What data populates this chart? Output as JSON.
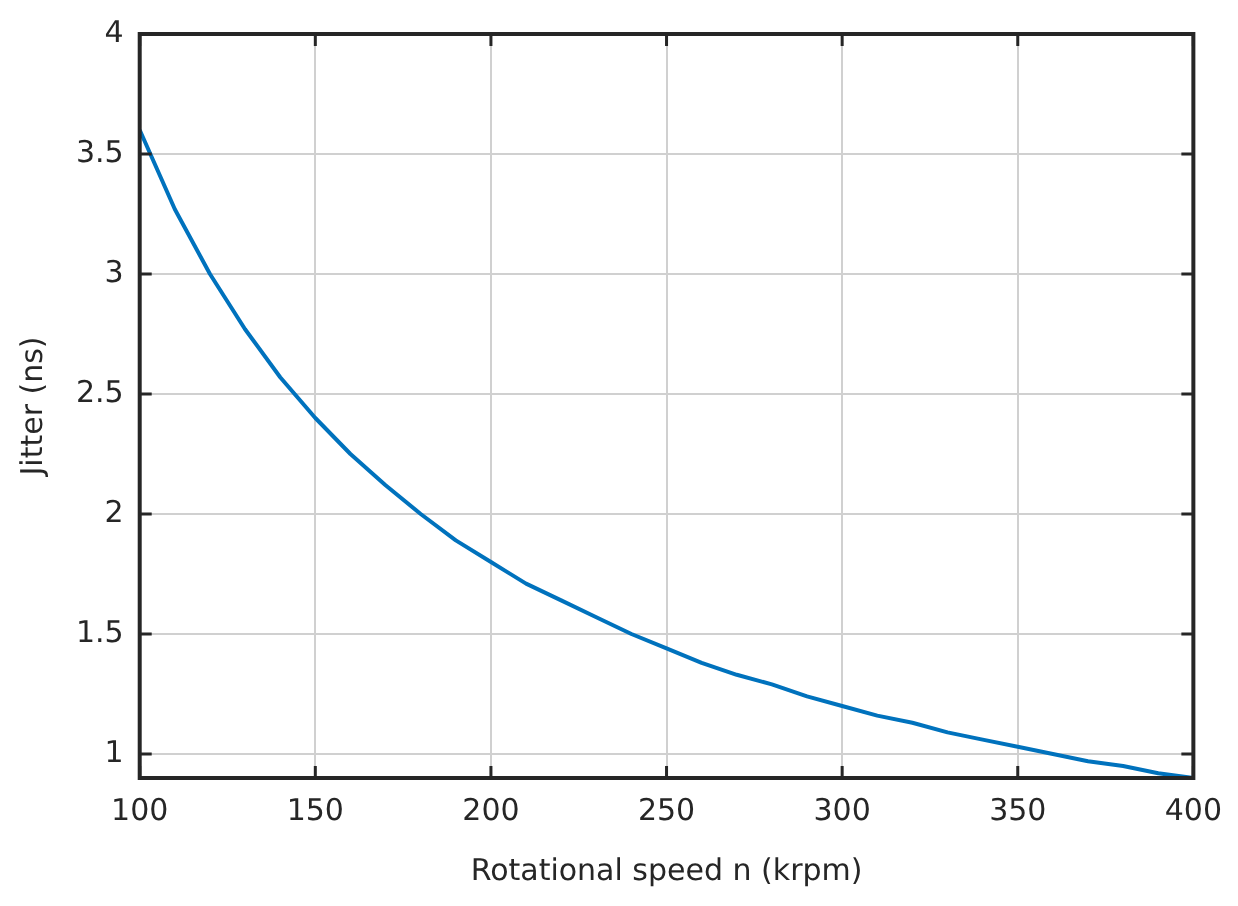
{
  "chart_data": {
    "type": "line",
    "xlabel": "Rotational speed n (krpm)",
    "ylabel": "Jitter (ns)",
    "x": [
      100,
      110,
      120,
      130,
      140,
      150,
      160,
      170,
      180,
      190,
      200,
      210,
      220,
      230,
      240,
      250,
      260,
      270,
      280,
      290,
      300,
      310,
      320,
      330,
      340,
      350,
      360,
      370,
      380,
      390,
      400
    ],
    "series": [
      {
        "color": "#0072bd",
        "values": [
          3.6,
          3.27,
          3.0,
          2.77,
          2.57,
          2.4,
          2.25,
          2.12,
          2.0,
          1.89,
          1.8,
          1.71,
          1.64,
          1.57,
          1.5,
          1.44,
          1.38,
          1.33,
          1.29,
          1.24,
          1.2,
          1.16,
          1.13,
          1.09,
          1.06,
          1.03,
          1.0,
          0.97,
          0.95,
          0.92,
          0.9
        ]
      }
    ],
    "xlim": [
      100,
      400
    ],
    "xticks": [
      100,
      150,
      200,
      250,
      300,
      350,
      400
    ],
    "ylim": [
      0.9,
      4
    ],
    "yticks": [
      1,
      1.5,
      2,
      2.5,
      3,
      3.5,
      4
    ],
    "grid": true,
    "legend": false,
    "marker": "none",
    "line_style": "solid"
  }
}
